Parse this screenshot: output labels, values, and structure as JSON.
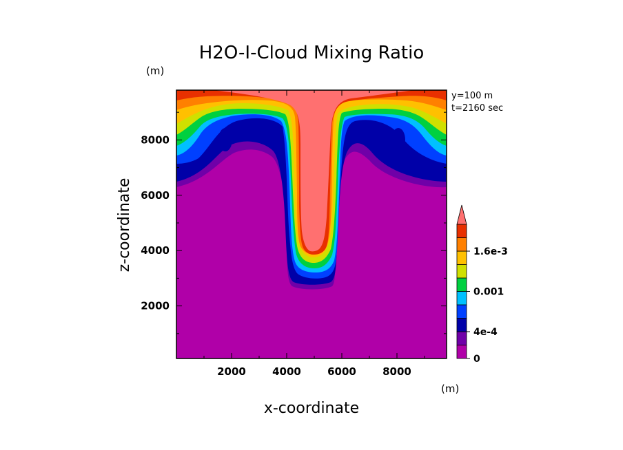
{
  "chart_data": {
    "type": "heatmap",
    "title": "H2O-I-Cloud Mixing Ratio",
    "xlabel": "x-coordinate",
    "ylabel": "z-coordinate",
    "x_unit": "(m)",
    "y_unit": "(m)",
    "xlim": [
      0,
      9800
    ],
    "ylim": [
      100,
      9800
    ],
    "x_ticks": [
      2000,
      4000,
      6000,
      8000
    ],
    "y_ticks": [
      2000,
      4000,
      6000,
      8000
    ],
    "annotations": [
      "y=100 m",
      "t=2160 sec"
    ],
    "colorbar": {
      "levels": [
        0,
        0.0002,
        0.0004,
        0.0006,
        0.0008,
        0.001,
        0.0012,
        0.0014,
        0.0016,
        0.0018,
        0.002
      ],
      "labels": [
        {
          "value": 0,
          "text": "0"
        },
        {
          "value": 0.0004,
          "text": "4e-4"
        },
        {
          "value": 0.001,
          "text": "0.001"
        },
        {
          "value": 0.0016,
          "text": "1.6e-3"
        }
      ],
      "colors": [
        "#b000a8",
        "#7000a8",
        "#0000a8",
        "#0040ff",
        "#00c0ff",
        "#00d040",
        "#d0e000",
        "#ffc000",
        "#ff8000",
        "#e83000",
        "#ff7070"
      ],
      "extend": "max"
    }
  }
}
